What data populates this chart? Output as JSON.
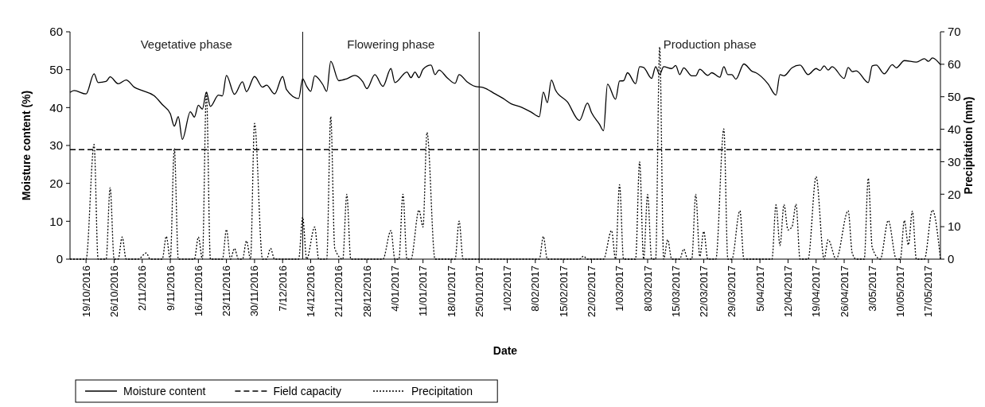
{
  "chart_data": {
    "type": "line",
    "xlabel": "Date",
    "ylabel": "Moisture content (%)",
    "y2label": "Precipitation (mm)",
    "xlim": [
      "2016-10-15",
      "2017-05-20"
    ],
    "ylim": [
      0,
      60
    ],
    "yticks": [
      0,
      10,
      20,
      30,
      40,
      50,
      60
    ],
    "y2lim": [
      0,
      70
    ],
    "y2ticks": [
      0,
      10,
      20,
      30,
      40,
      50,
      60,
      70
    ],
    "xticks": [
      {
        "value": "2016-10-19",
        "label": "19/10/2016"
      },
      {
        "value": "2016-10-26",
        "label": "26/10/2016"
      },
      {
        "value": "2016-11-02",
        "label": "2/11/2016"
      },
      {
        "value": "2016-11-09",
        "label": "9/11/2016"
      },
      {
        "value": "2016-11-16",
        "label": "16/11/2016"
      },
      {
        "value": "2016-11-23",
        "label": "23/11/2016"
      },
      {
        "value": "2016-11-30",
        "label": "30/11/2016"
      },
      {
        "value": "2016-12-07",
        "label": "7/12/2016"
      },
      {
        "value": "2016-12-14",
        "label": "14/12/2016"
      },
      {
        "value": "2016-12-21",
        "label": "21/12/2016"
      },
      {
        "value": "2016-12-28",
        "label": "28/12/2016"
      },
      {
        "value": "2017-01-04",
        "label": "4/01/2017"
      },
      {
        "value": "2017-01-11",
        "label": "11/01/2017"
      },
      {
        "value": "2017-01-18",
        "label": "18/01/2017"
      },
      {
        "value": "2017-01-25",
        "label": "25/01/2017"
      },
      {
        "value": "2017-02-01",
        "label": "1/02/2017"
      },
      {
        "value": "2017-02-08",
        "label": "8/02/2017"
      },
      {
        "value": "2017-02-15",
        "label": "15/02/2017"
      },
      {
        "value": "2017-02-22",
        "label": "22/02/2017"
      },
      {
        "value": "2017-03-01",
        "label": "1/03/2017"
      },
      {
        "value": "2017-03-08",
        "label": "8/03/2017"
      },
      {
        "value": "2017-03-15",
        "label": "15/03/2017"
      },
      {
        "value": "2017-03-22",
        "label": "22/03/2017"
      },
      {
        "value": "2017-03-29",
        "label": "29/03/2017"
      },
      {
        "value": "2017-04-05",
        "label": "5/04/2017"
      },
      {
        "value": "2017-04-12",
        "label": "12/04/2017"
      },
      {
        "value": "2017-04-19",
        "label": "19/04/2017"
      },
      {
        "value": "2017-04-26",
        "label": "26/04/2017"
      },
      {
        "value": "2017-05-03",
        "label": "3/05/2017"
      },
      {
        "value": "2017-05-10",
        "label": "10/05/2017"
      },
      {
        "value": "2017-05-17",
        "label": "17/05/2017"
      }
    ],
    "legend": "bottom left",
    "ref_lines": [
      {
        "axis": "x",
        "value": "2016-12-12",
        "color": "#000000",
        "line_style": "solid"
      },
      {
        "axis": "x",
        "value": "2017-01-25",
        "color": "#000000",
        "line_style": "solid"
      }
    ],
    "annotations": [
      "Vegetative phase",
      "Flowering phase",
      "Production phase"
    ],
    "series": [
      {
        "name": "Moisture content",
        "color": "#000000",
        "line_style": "solid",
        "x": [
          "2016-10-15",
          "2016-10-16",
          "2016-10-19",
          "2016-10-21",
          "2016-10-22",
          "2016-10-24",
          "2016-10-25",
          "2016-10-27",
          "2016-10-29",
          "2016-10-31",
          "2016-11-02",
          "2016-11-05",
          "2016-11-07",
          "2016-11-09",
          "2016-11-10",
          "2016-11-11",
          "2016-11-12",
          "2016-11-14",
          "2016-11-15",
          "2016-11-16",
          "2016-11-17",
          "2016-11-18",
          "2016-11-19",
          "2016-11-21",
          "2016-11-22",
          "2016-11-23",
          "2016-11-25",
          "2016-11-27",
          "2016-11-28",
          "2016-11-30",
          "2016-12-02",
          "2016-12-03",
          "2016-12-05",
          "2016-12-07",
          "2016-12-08",
          "2016-12-11",
          "2016-12-12",
          "2016-12-13",
          "2016-12-14",
          "2016-12-15",
          "2016-12-17",
          "2016-12-18",
          "2016-12-19",
          "2016-12-21",
          "2016-12-23",
          "2016-12-25",
          "2016-12-27",
          "2016-12-28",
          "2016-12-30",
          "2017-01-01",
          "2017-01-03",
          "2017-01-04",
          "2017-01-07",
          "2017-01-08",
          "2017-01-09",
          "2017-01-10",
          "2017-01-11",
          "2017-01-13",
          "2017-01-14",
          "2017-01-15",
          "2017-01-17",
          "2017-01-19",
          "2017-01-20",
          "2017-01-22",
          "2017-01-24",
          "2017-01-26",
          "2017-01-29",
          "2017-01-31",
          "2017-02-02",
          "2017-02-04",
          "2017-02-07",
          "2017-02-09",
          "2017-02-10",
          "2017-02-11",
          "2017-02-12",
          "2017-02-13",
          "2017-02-16",
          "2017-02-19",
          "2017-02-21",
          "2017-02-22",
          "2017-02-24",
          "2017-02-25",
          "2017-02-26",
          "2017-02-28",
          "2017-03-01",
          "2017-03-02",
          "2017-03-03",
          "2017-03-05",
          "2017-03-06",
          "2017-03-07",
          "2017-03-09",
          "2017-03-10",
          "2017-03-11",
          "2017-03-12",
          "2017-03-14",
          "2017-03-15",
          "2017-03-16",
          "2017-03-17",
          "2017-03-19",
          "2017-03-20",
          "2017-03-21",
          "2017-03-23",
          "2017-03-24",
          "2017-03-26",
          "2017-03-27",
          "2017-03-28",
          "2017-03-29",
          "2017-03-30",
          "2017-04-01",
          "2017-04-03",
          "2017-04-04",
          "2017-04-07",
          "2017-04-09",
          "2017-04-10",
          "2017-04-11",
          "2017-04-13",
          "2017-04-15",
          "2017-04-17",
          "2017-04-19",
          "2017-04-20",
          "2017-04-21",
          "2017-04-22",
          "2017-04-23",
          "2017-04-26",
          "2017-04-27",
          "2017-04-28",
          "2017-04-29",
          "2017-05-02",
          "2017-05-03",
          "2017-05-04",
          "2017-05-06",
          "2017-05-08",
          "2017-05-09",
          "2017-05-11",
          "2017-05-14",
          "2017-05-16",
          "2017-05-17",
          "2017-05-18",
          "2017-05-20"
        ],
        "values": [
          44.0,
          44.5,
          43.6,
          48.9,
          46.6,
          46.9,
          48.1,
          46.3,
          47.3,
          45.4,
          44.5,
          43.1,
          40.8,
          38.4,
          35.1,
          37.6,
          31.6,
          38.9,
          37.5,
          40.6,
          39.6,
          44.1,
          40.3,
          43.3,
          43.1,
          48.5,
          43.5,
          46.8,
          44.2,
          48.2,
          45.4,
          45.9,
          43.6,
          48.2,
          44.7,
          42.4,
          47.6,
          45.6,
          44.3,
          48.4,
          46.1,
          44.3,
          52.2,
          47.1,
          47.6,
          48.5,
          46.8,
          45.0,
          48.7,
          45.6,
          50.3,
          46.6,
          49.4,
          47.9,
          49.4,
          47.9,
          50.1,
          51.2,
          48.7,
          49.9,
          47.9,
          46.4,
          48.7,
          46.8,
          45.6,
          45.3,
          43.6,
          42.4,
          41.0,
          40.3,
          38.8,
          37.6,
          44.1,
          41.3,
          47.3,
          44.7,
          41.5,
          36.6,
          41.2,
          38.7,
          35.6,
          33.9,
          46.2,
          42.2,
          47.0,
          47.1,
          49.2,
          46.3,
          50.8,
          50.6,
          47.7,
          50.8,
          48.7,
          50.8,
          50.3,
          51.1,
          48.7,
          50.5,
          48.4,
          48.4,
          50.1,
          48.5,
          49.2,
          48.0,
          50.8,
          48.7,
          48.7,
          47.5,
          51.5,
          49.6,
          49.2,
          46.3,
          43.3,
          48.7,
          48.4,
          50.5,
          51.2,
          48.7,
          50.3,
          49.8,
          51.0,
          49.9,
          50.8,
          47.7,
          50.6,
          49.5,
          49.7,
          46.6,
          51.0,
          51.2,
          48.9,
          51.3,
          50.5,
          52.4,
          52.0,
          52.9,
          52.2,
          53.1,
          51.3
        ]
      },
      {
        "name": "Field capacity",
        "color": "#000000",
        "line_style": "dashed",
        "x": [
          "2016-10-15",
          "2017-05-20"
        ],
        "values": [
          28.9,
          28.9
        ]
      },
      {
        "name": "Precipitation",
        "color": "#000000",
        "line_style": "dotted",
        "axis": "y2",
        "x": [
          "2016-10-15",
          "2016-10-19",
          "2016-10-21",
          "2016-10-22",
          "2016-10-24",
          "2016-10-25",
          "2016-10-26",
          "2016-10-27",
          "2016-10-28",
          "2016-10-29",
          "2016-11-01",
          "2016-11-03",
          "2016-11-04",
          "2016-11-07",
          "2016-11-08",
          "2016-11-09",
          "2016-11-10",
          "2016-11-11",
          "2016-11-15",
          "2016-11-16",
          "2016-11-17",
          "2016-11-18",
          "2016-11-19",
          "2016-11-22",
          "2016-11-23",
          "2016-11-24",
          "2016-11-25",
          "2016-11-26",
          "2016-11-27",
          "2016-11-28",
          "2016-11-29",
          "2016-11-30",
          "2016-12-02",
          "2016-12-03",
          "2016-12-04",
          "2016-12-05",
          "2016-12-11",
          "2016-12-12",
          "2016-12-13",
          "2016-12-15",
          "2016-12-16",
          "2016-12-18",
          "2016-12-19",
          "2016-12-20",
          "2016-12-22",
          "2016-12-23",
          "2016-12-24",
          "2017-01-01",
          "2017-01-03",
          "2017-01-04",
          "2017-01-05",
          "2017-01-06",
          "2017-01-07",
          "2017-01-08",
          "2017-01-10",
          "2017-01-11",
          "2017-01-12",
          "2017-01-14",
          "2017-01-19",
          "2017-01-20",
          "2017-01-21",
          "2017-02-09",
          "2017-02-10",
          "2017-02-11",
          "2017-02-19",
          "2017-02-20",
          "2017-02-21",
          "2017-02-25",
          "2017-02-27",
          "2017-02-28",
          "2017-03-01",
          "2017-03-02",
          "2017-03-05",
          "2017-03-06",
          "2017-03-07",
          "2017-03-08",
          "2017-03-09",
          "2017-03-10",
          "2017-03-11",
          "2017-03-12",
          "2017-03-13",
          "2017-03-14",
          "2017-03-16",
          "2017-03-17",
          "2017-03-18",
          "2017-03-19",
          "2017-03-20",
          "2017-03-21",
          "2017-03-22",
          "2017-03-23",
          "2017-03-25",
          "2017-03-27",
          "2017-03-28",
          "2017-03-29",
          "2017-03-31",
          "2017-04-01",
          "2017-04-08",
          "2017-04-09",
          "2017-04-10",
          "2017-04-11",
          "2017-04-12",
          "2017-04-13",
          "2017-04-14",
          "2017-04-15",
          "2017-04-17",
          "2017-04-19",
          "2017-04-21",
          "2017-04-22",
          "2017-04-24",
          "2017-04-27",
          "2017-04-28",
          "2017-04-29",
          "2017-05-01",
          "2017-05-02",
          "2017-05-03",
          "2017-05-05",
          "2017-05-07",
          "2017-05-09",
          "2017-05-10",
          "2017-05-11",
          "2017-05-12",
          "2017-05-13",
          "2017-05-14",
          "2017-05-16",
          "2017-05-18",
          "2017-05-20"
        ],
        "values": [
          0,
          0,
          35.3,
          0,
          0,
          22.0,
          0,
          0,
          6.8,
          0,
          0,
          1.9,
          0,
          0,
          7.0,
          0,
          34.1,
          0,
          0,
          6.8,
          0,
          51.6,
          0,
          0,
          9.1,
          0,
          3.3,
          0,
          0,
          5.6,
          0,
          41.8,
          0,
          0,
          3.3,
          0,
          0,
          12.9,
          0,
          9.9,
          0,
          0,
          43.9,
          3.3,
          0,
          20.0,
          0,
          0,
          8.8,
          0,
          0,
          20.0,
          0,
          0,
          15.1,
          9.9,
          39.0,
          0,
          0,
          11.7,
          0,
          0,
          7.0,
          0,
          0,
          0.9,
          0,
          0,
          8.8,
          0,
          22.9,
          0,
          0,
          30.0,
          0,
          19.9,
          0,
          0,
          65.3,
          0,
          6.0,
          0,
          0,
          3.1,
          0,
          0,
          20.0,
          0.8,
          8.5,
          0,
          0,
          40.1,
          0,
          0,
          14.9,
          0,
          0,
          16.7,
          4.2,
          16.8,
          9.0,
          10.0,
          16.9,
          0,
          0,
          25.4,
          0,
          6.0,
          0,
          14.9,
          1.9,
          0,
          0,
          24.9,
          3.5,
          0,
          11.9,
          0,
          0,
          11.9,
          4.4,
          14.8,
          0,
          0,
          15.1,
          0
        ]
      }
    ]
  }
}
